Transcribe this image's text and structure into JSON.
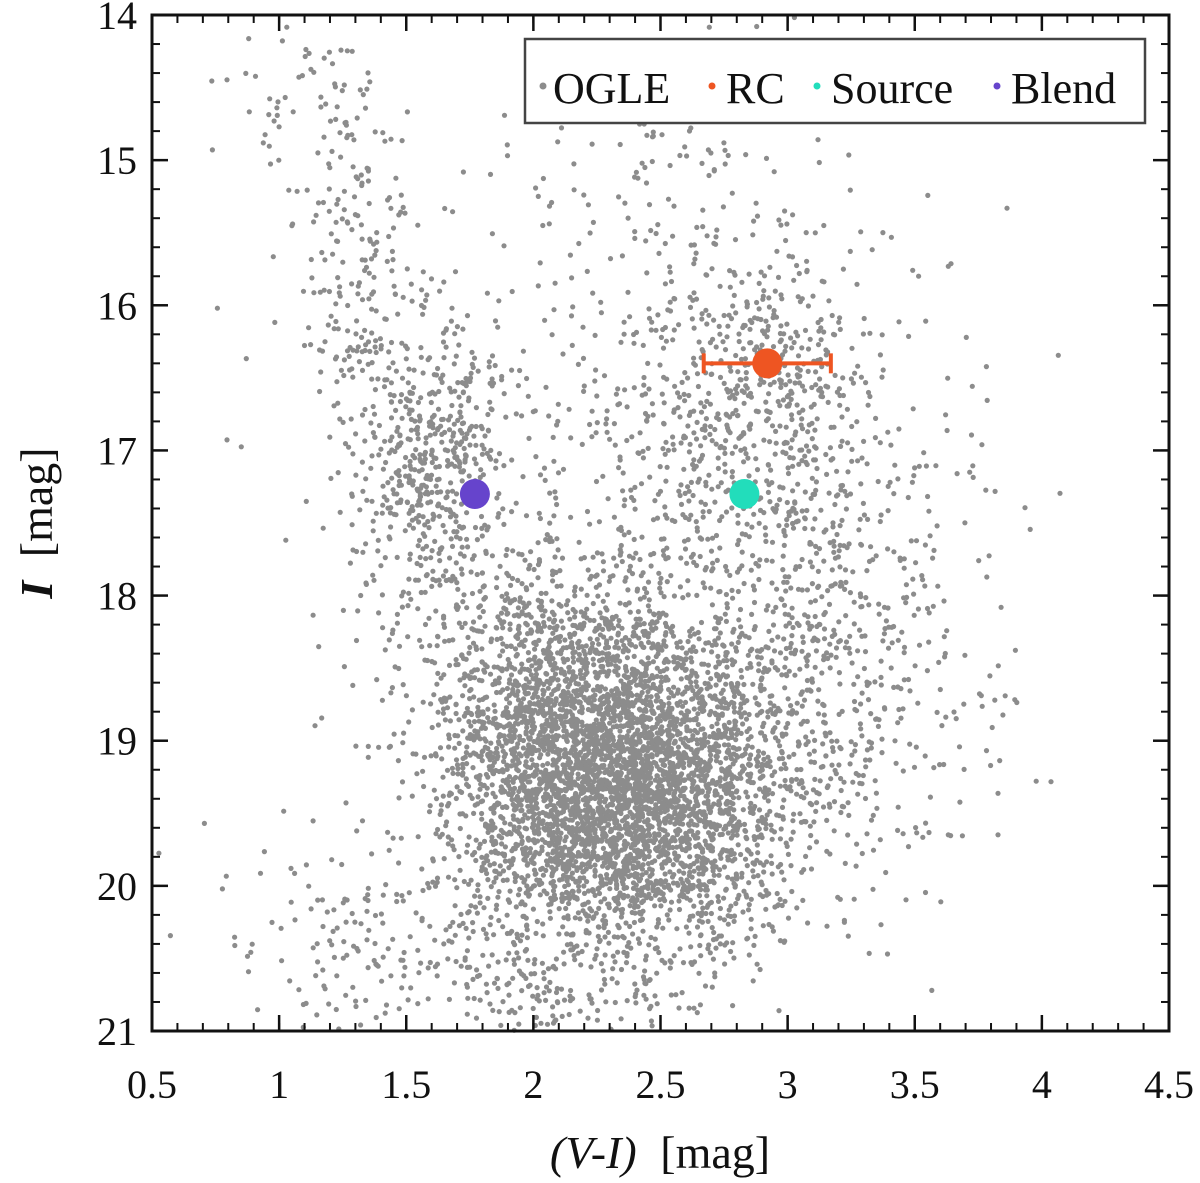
{
  "chart_data": {
    "type": "scatter",
    "title": "",
    "xlabel": "(V-I) [mag]",
    "xlabel_italic_part": "(V-I)",
    "xlabel_unit_part": "[mag]",
    "ylabel": "I [mag]",
    "ylabel_italic_part": "I",
    "ylabel_unit_part": "[mag]",
    "xlim": [
      0.5,
      4.5
    ],
    "ylim": [
      21,
      14
    ],
    "y_inverted": true,
    "xticks": [
      "0.5",
      "1",
      "1.5",
      "2",
      "2.5",
      "3",
      "3.5",
      "4",
      "4.5"
    ],
    "yticks": [
      "14",
      "15",
      "16",
      "17",
      "18",
      "19",
      "20",
      "21"
    ],
    "legend_position": "top-right",
    "legend": [
      "OGLE",
      "RC",
      "Source",
      "Blend"
    ],
    "series": [
      {
        "name": "OGLE",
        "color": "#8c8c8c",
        "description_clusters": [
          {
            "cx": 2.35,
            "cy": 19.35,
            "sx": 0.33,
            "sy": 0.55,
            "n": 4200
          },
          {
            "cx": 2.05,
            "cy": 18.6,
            "sx": 0.22,
            "sy": 0.5,
            "n": 700
          },
          {
            "cx": 1.6,
            "cy": 17.1,
            "sx": 0.16,
            "sy": 0.55,
            "n": 550
          },
          {
            "cx": 1.3,
            "cy": 15.6,
            "sx": 0.12,
            "sy": 0.6,
            "n": 170
          },
          {
            "cx": 1.05,
            "cy": 14.6,
            "sx": 0.12,
            "sy": 0.35,
            "n": 50
          },
          {
            "cx": 2.85,
            "cy": 16.5,
            "sx": 0.25,
            "sy": 0.45,
            "n": 380
          },
          {
            "cx": 2.9,
            "cy": 17.6,
            "sx": 0.4,
            "sy": 0.7,
            "n": 650
          },
          {
            "cx": 3.2,
            "cy": 18.8,
            "sx": 0.32,
            "sy": 0.6,
            "n": 300
          },
          {
            "cx": 2.6,
            "cy": 15.4,
            "sx": 0.45,
            "sy": 0.55,
            "n": 160
          },
          {
            "cx": 1.4,
            "cy": 20.4,
            "sx": 0.35,
            "sy": 0.35,
            "n": 160
          },
          {
            "cx": 2.1,
            "cy": 20.7,
            "sx": 0.3,
            "sy": 0.2,
            "n": 130
          },
          {
            "cx": 2.2,
            "cy": 17.6,
            "sx": 0.6,
            "sy": 1.4,
            "n": 250
          }
        ]
      },
      {
        "name": "RC",
        "color": "#ee5522",
        "x": [
          2.92
        ],
        "y": [
          16.4
        ],
        "xerr": [
          0.25
        ]
      },
      {
        "name": "Source",
        "color": "#22ddbb",
        "x": [
          2.83
        ],
        "y": [
          17.3
        ]
      },
      {
        "name": "Blend",
        "color": "#6644cc",
        "x": [
          1.77
        ],
        "y": [
          17.3
        ]
      }
    ]
  }
}
